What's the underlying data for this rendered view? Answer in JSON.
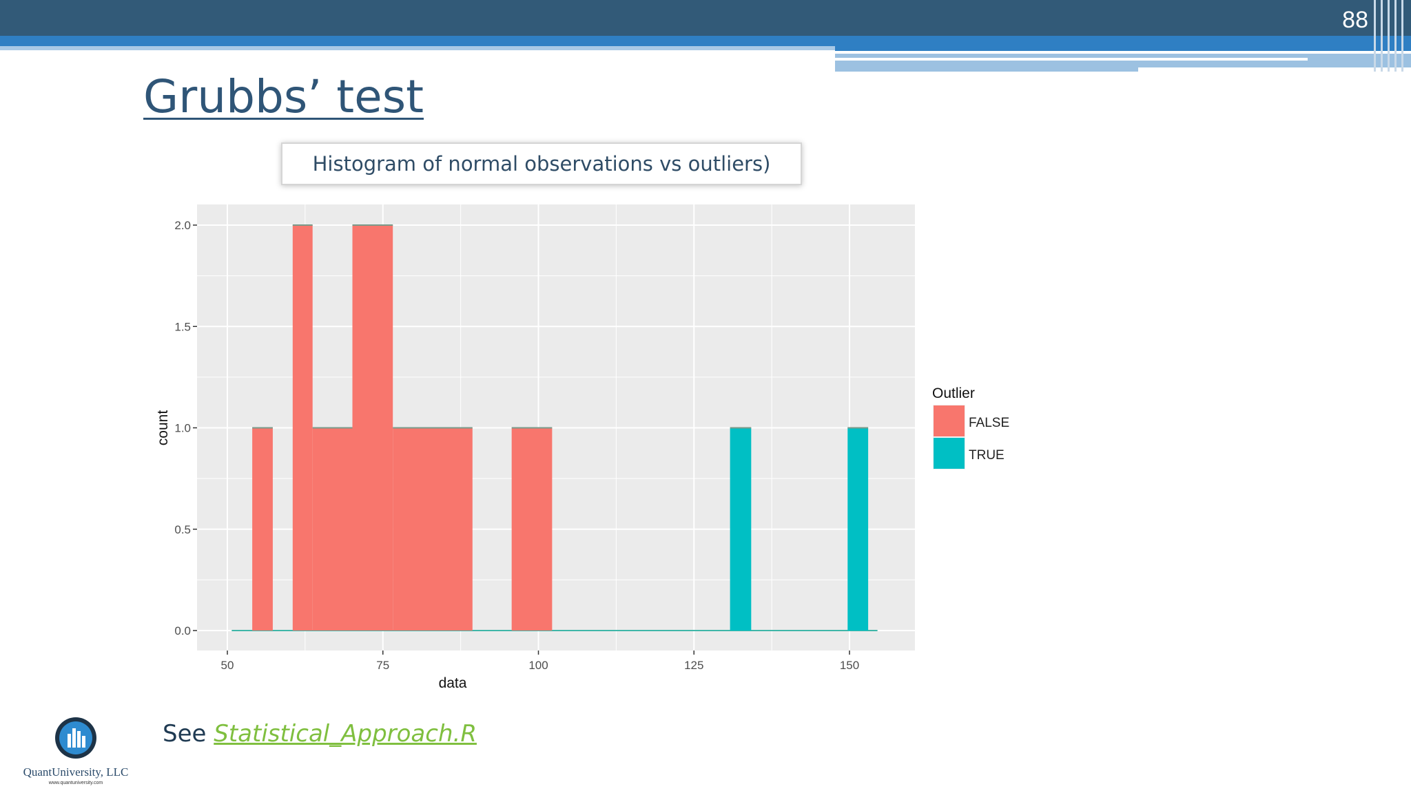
{
  "slide": {
    "number": "88",
    "title": "Grubbs’ test",
    "caption": "Histogram of normal observations vs outliers)",
    "footer_prefix": "See ",
    "footer_link": "Statistical_Approach.R"
  },
  "logo": {
    "name": "QuantUniversity, LLC",
    "url": "www.quantuniversity.com"
  },
  "chart_data": {
    "type": "bar",
    "xlabel": "data",
    "ylabel": "count",
    "xlim": [
      50,
      157
    ],
    "ylim": [
      0,
      2.0
    ],
    "x_ticks": [
      50,
      75,
      100,
      125,
      150
    ],
    "y_ticks": [
      0.0,
      0.5,
      1.0,
      1.5,
      2.0
    ],
    "y_tick_labels": [
      "0.0",
      "0.5",
      "1.0",
      "1.5",
      "2.0"
    ],
    "grid": true,
    "legend": {
      "title": "Outlier",
      "position": "right",
      "entries": [
        {
          "name": "FALSE",
          "color": "#f8766d"
        },
        {
          "name": "TRUE",
          "color": "#00bfc4"
        }
      ]
    },
    "series": [
      {
        "name": "FALSE",
        "color": "#f8766d",
        "bins": [
          {
            "x0": 54.0,
            "x1": 57.3,
            "count": 1
          },
          {
            "x0": 60.5,
            "x1": 63.7,
            "count": 2
          },
          {
            "x0": 63.7,
            "x1": 70.1,
            "count": 1
          },
          {
            "x0": 70.1,
            "x1": 76.6,
            "count": 2
          },
          {
            "x0": 76.6,
            "x1": 89.4,
            "count": 1
          },
          {
            "x0": 95.7,
            "x1": 102.2,
            "count": 1
          }
        ]
      },
      {
        "name": "TRUE",
        "color": "#00bfc4",
        "bins": [
          {
            "x0": 130.8,
            "x1": 134.2,
            "count": 1
          },
          {
            "x0": 149.7,
            "x1": 153.0,
            "count": 1
          }
        ]
      }
    ],
    "colors": {
      "panel_bg": "#ebebeb",
      "grid": "#ffffff",
      "axis_text": "#4d4d4d"
    }
  }
}
